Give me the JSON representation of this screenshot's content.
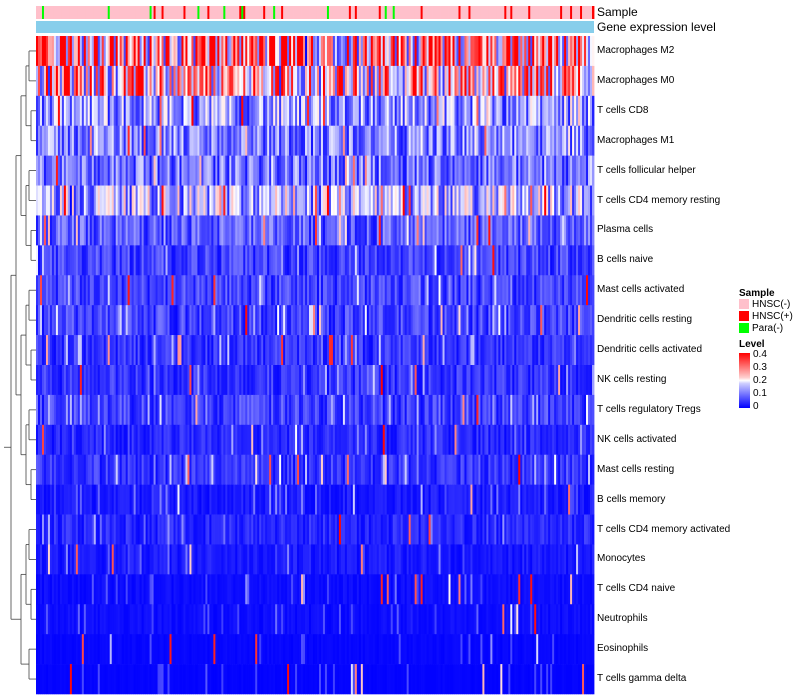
{
  "chart_data": {
    "type": "heatmap",
    "title": "",
    "annotation_tracks": [
      {
        "name": "Sample",
        "label": "Sample"
      },
      {
        "name": "Gene expression level",
        "label": "Gene expression level"
      }
    ],
    "rows": [
      {
        "label": "Macrophages M2",
        "mean": 0.28
      },
      {
        "label": "Macrophages M0",
        "mean": 0.24
      },
      {
        "label": "T cells CD8",
        "mean": 0.12
      },
      {
        "label": "Macrophages M1",
        "mean": 0.1
      },
      {
        "label": "T cells follicular helper",
        "mean": 0.09
      },
      {
        "label": "T cells CD4 memory resting",
        "mean": 0.14
      },
      {
        "label": "Plasma cells",
        "mean": 0.07
      },
      {
        "label": "B cells naive",
        "mean": 0.05
      },
      {
        "label": "Mast cells activated",
        "mean": 0.05
      },
      {
        "label": "Dendritic cells resting",
        "mean": 0.05
      },
      {
        "label": "Dendritic cells activated",
        "mean": 0.04
      },
      {
        "label": "NK cells resting",
        "mean": 0.04
      },
      {
        "label": "T cells regulatory  Tregs",
        "mean": 0.05
      },
      {
        "label": "NK cells activated",
        "mean": 0.03
      },
      {
        "label": "Mast cells resting",
        "mean": 0.04
      },
      {
        "label": "B cells memory",
        "mean": 0.02
      },
      {
        "label": "T cells CD4 memory activated",
        "mean": 0.03
      },
      {
        "label": "Monocytes",
        "mean": 0.02
      },
      {
        "label": "T cells CD4 naive",
        "mean": 0.01
      },
      {
        "label": "Neutrophils",
        "mean": 0.01
      },
      {
        "label": "Eosinophils",
        "mean": 0.005
      },
      {
        "label": "T cells gamma delta",
        "mean": 0.003
      }
    ],
    "legends": {
      "sample": {
        "title": "Sample",
        "items": [
          {
            "label": "HNSC(-)",
            "color": "#FFC0CB"
          },
          {
            "label": "HNSC(+)",
            "color": "#FF0000"
          },
          {
            "label": "Para(-)",
            "color": "#00FF00"
          }
        ]
      },
      "level": {
        "title": "Level",
        "ticks": [
          "0.4",
          "0.3",
          "0.2",
          "0.1",
          "0"
        ],
        "range": [
          0,
          0.4
        ],
        "colors": [
          "#0000FF",
          "#FFFFFF",
          "#FF0000"
        ]
      }
    },
    "expression_track_color": "#87CEEB"
  }
}
